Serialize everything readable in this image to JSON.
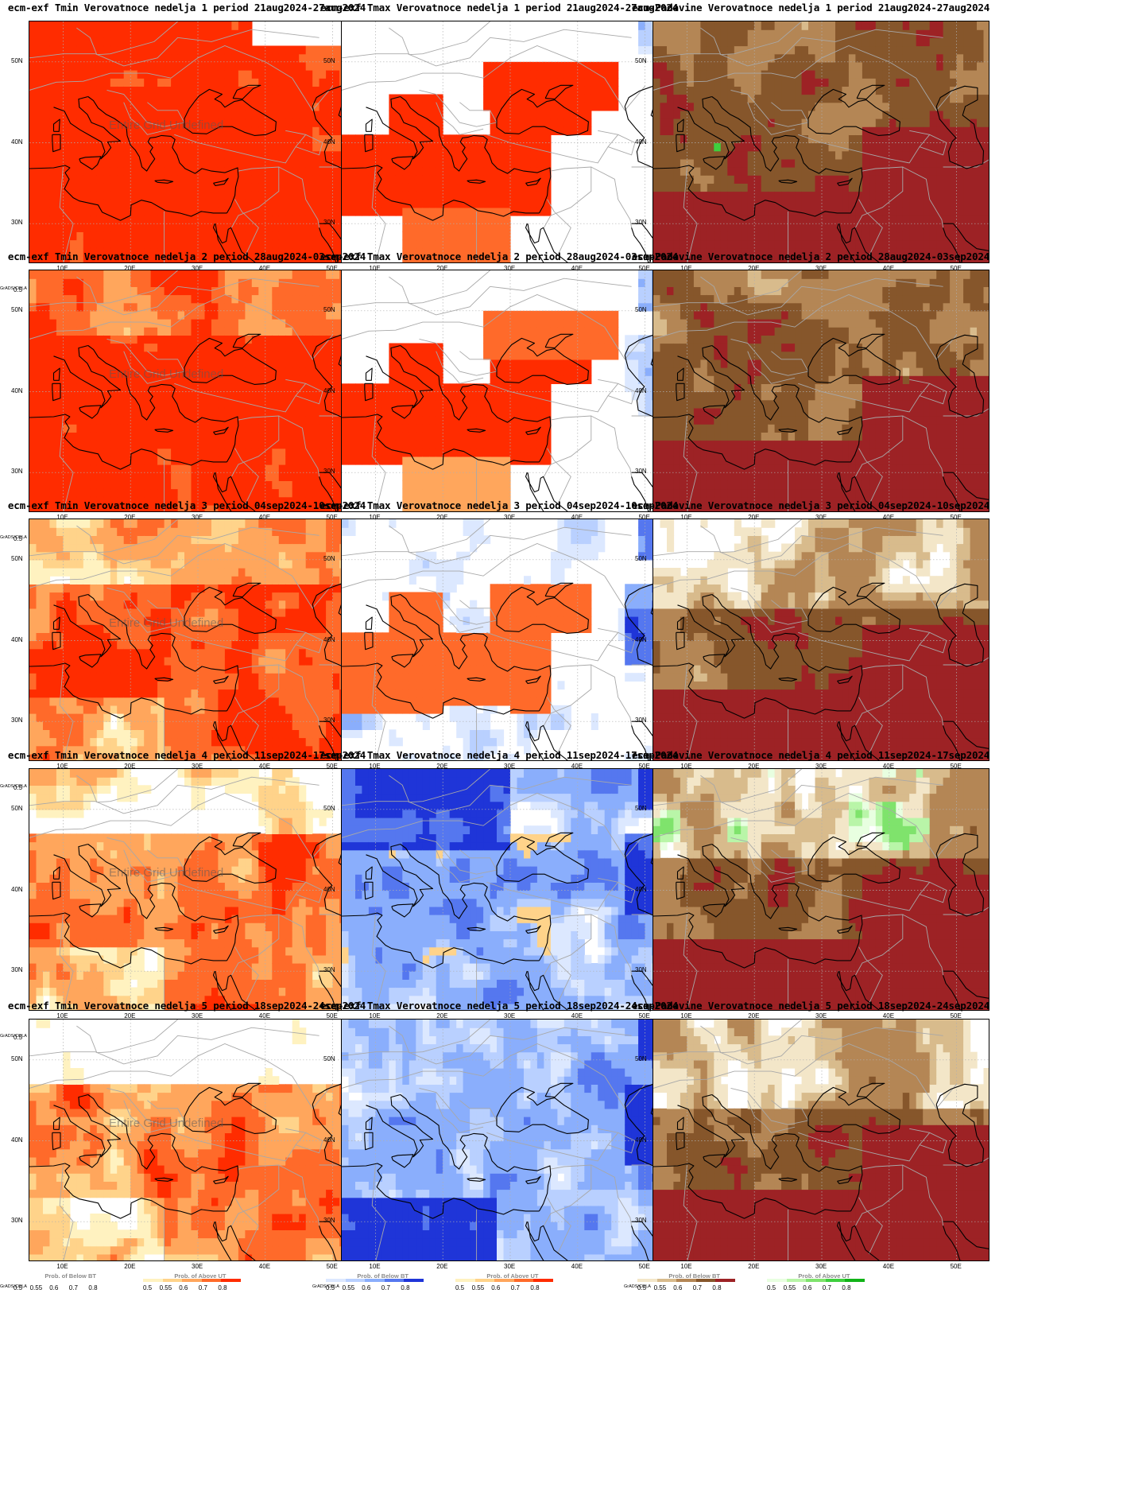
{
  "global": {
    "grads_label": "GrADS/COLA",
    "undefined_text": "Entire Grid Undefined",
    "legend_ticks": [
      "0.5",
      "0.55",
      "0.6",
      "0.7",
      "0.8"
    ],
    "lat_labels": [
      "50N",
      "40N",
      "30N"
    ],
    "lon_labels": [
      "10E",
      "20E",
      "30E",
      "40E",
      "50E"
    ],
    "legend_titles": {
      "below_bt": "Prob. of Below BT",
      "above_ut": "Prob. of Above UT"
    }
  },
  "colors": {
    "tmin_warm": [
      "#fff2c0",
      "#ffd38a",
      "#ffa65c",
      "#ff6a2a",
      "#ff2c00"
    ],
    "tmax_cool": [
      "#dce8ff",
      "#b9d0ff",
      "#8aaefc",
      "#5577ef",
      "#1f35d8"
    ],
    "prec_dry": [
      "#f3e6c8",
      "#d8bb8c",
      "#b48655",
      "#86562b",
      "#9d2225"
    ],
    "prec_wet": [
      "#e8ffe0",
      "#b9f5a8",
      "#7fe36c",
      "#3ecf3e",
      "#11b318"
    ],
    "coast": "#000000",
    "borders": "#a8a8a8",
    "gridlines": "#b0b0b0"
  },
  "panels": [
    {
      "title": "ecm-exf Tmin Verovatnoce nedelja 1 period 21aug2024-27aug2024",
      "type": "tmin",
      "week": 1,
      "undefined": true
    },
    {
      "title": "ecm-exf Tmax Verovatnoce nedelja 1 period 21aug2024-27aug2024",
      "type": "tmax",
      "week": 1,
      "undefined": false
    },
    {
      "title": "ecm-Padavine Verovatnoce nedelja 1 period 21aug2024-27aug2024",
      "type": "prec",
      "week": 1,
      "undefined": false
    },
    {
      "title": "ecm-exf Tmin Verovatnoce nedelja 2 period 28aug2024-03sep2024",
      "type": "tmin",
      "week": 2,
      "undefined": true
    },
    {
      "title": "ecm-exf Tmax Verovatnoce nedelja 2 period 28aug2024-03sep2024",
      "type": "tmax",
      "week": 2,
      "undefined": false
    },
    {
      "title": "ecm-Padavine Verovatnoce nedelja 2 period 28aug2024-03sep2024",
      "type": "prec",
      "week": 2,
      "undefined": false
    },
    {
      "title": "ecm-exf Tmin Verovatnoce nedelja 3 period 04sep2024-10sep2024",
      "type": "tmin",
      "week": 3,
      "undefined": true
    },
    {
      "title": "ecm-exf Tmax Verovatnoce nedelja 3 period 04sep2024-10sep2024",
      "type": "tmax",
      "week": 3,
      "undefined": false
    },
    {
      "title": "ecm-Padavine Verovatnoce nedelja 3 period 04sep2024-10sep2024",
      "type": "prec",
      "week": 3,
      "undefined": false
    },
    {
      "title": "ecm-exf Tmin Verovatnoce nedelja 4 period 11sep2024-17sep2024",
      "type": "tmin",
      "week": 4,
      "undefined": true
    },
    {
      "title": "ecm-exf Tmax Verovatnoce nedelja 4 period 11sep2024-17sep2024",
      "type": "tmax",
      "week": 4,
      "undefined": false
    },
    {
      "title": "ecm-Padavine Verovatnoce nedelja 4 period 11sep2024-17sep2024",
      "type": "prec",
      "week": 4,
      "undefined": false
    },
    {
      "title": "ecm-exf Tmin Verovatnoce nedelja 5 period 18sep2024-24sep2024",
      "type": "tmin",
      "week": 5,
      "undefined": true
    },
    {
      "title": "ecm-exf Tmax Verovatnoce nedelja 5 period 18sep2024-24sep2024",
      "type": "tmax",
      "week": 5,
      "undefined": false
    },
    {
      "title": "ecm-Padavine Verovatnoce nedelja 5 period 18sep2024-24sep2024",
      "type": "prec",
      "week": 5,
      "undefined": false
    }
  ]
}
